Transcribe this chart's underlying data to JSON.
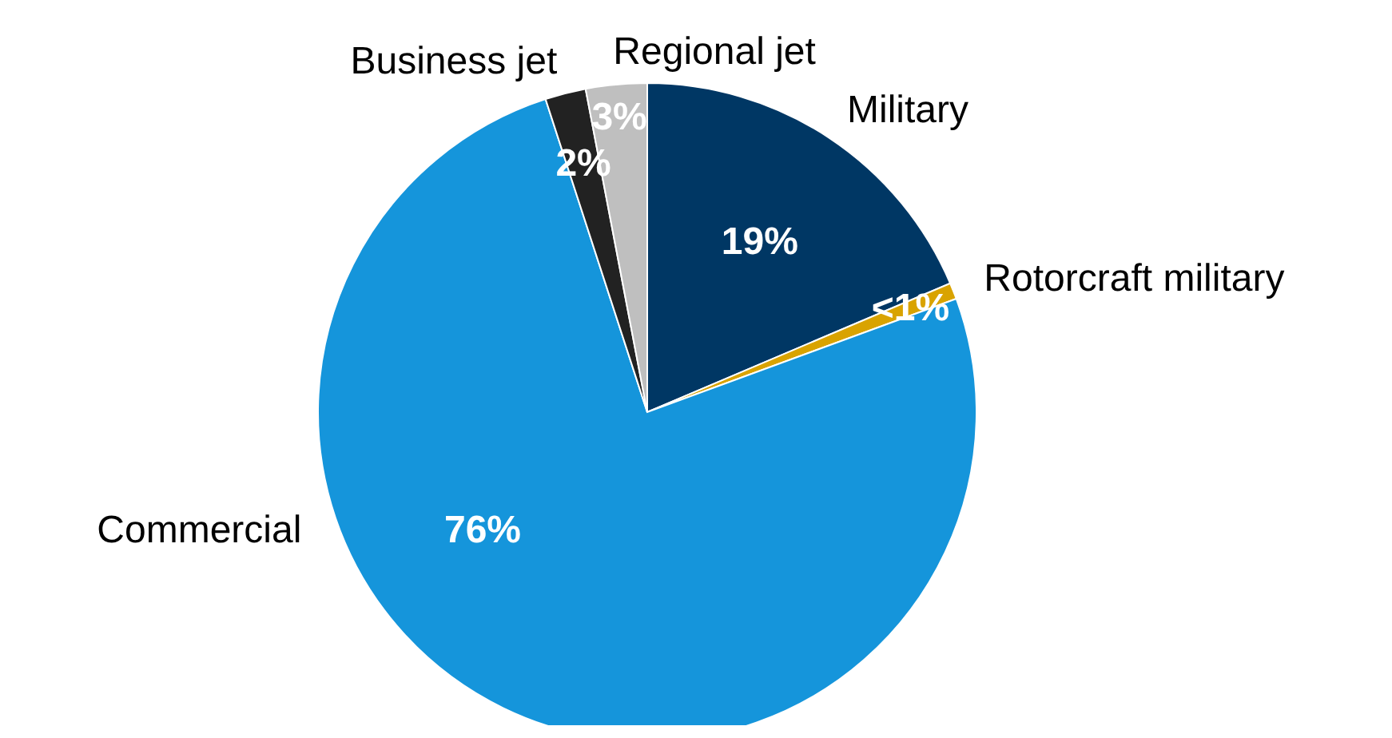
{
  "chart_data": {
    "type": "pie",
    "categories": [
      "Military",
      "Rotorcraft military",
      "Commercial",
      "Business jet",
      "Regional jet"
    ],
    "values": [
      18.6,
      0.8,
      75.6,
      2,
      3
    ],
    "value_labels": [
      "19%",
      "<1%",
      "76%",
      "2%",
      "3%"
    ],
    "colors": [
      "#003764",
      "#d9a300",
      "#1595db",
      "#222222",
      "#bfbfbf"
    ]
  }
}
